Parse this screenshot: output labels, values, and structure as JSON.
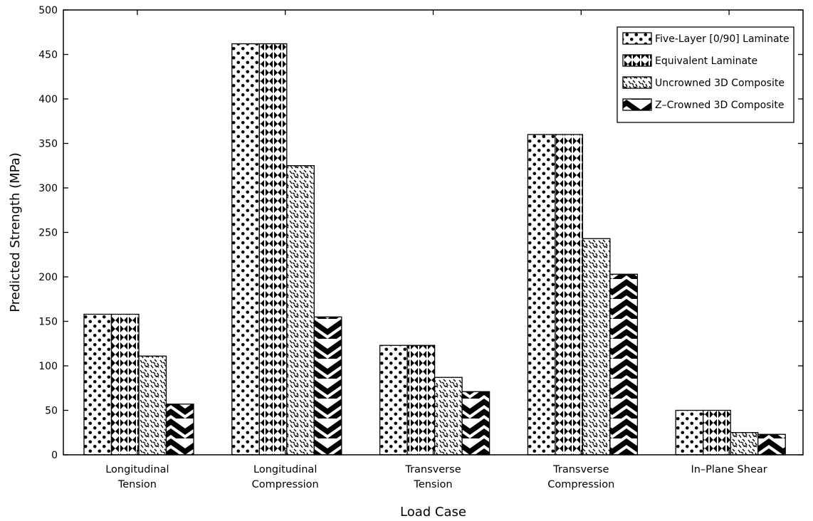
{
  "chart_data": {
    "type": "bar",
    "xlabel": "Load Case",
    "ylabel": "Predicted Strength (MPa)",
    "ylim": [
      0,
      500
    ],
    "yticks": [
      0,
      50,
      100,
      150,
      200,
      250,
      300,
      350,
      400,
      450,
      500
    ],
    "grid": false,
    "legend_position": "top-right",
    "categories": [
      [
        "Longitudinal",
        "Tension"
      ],
      [
        "Longitudinal",
        "Compression"
      ],
      [
        "Transverse",
        "Tension"
      ],
      [
        "Transverse",
        "Compression"
      ],
      [
        "In–Plane Shear"
      ]
    ],
    "series": [
      {
        "name": "Five-Layer [0/90] Laminate",
        "pattern": "dots",
        "values": [
          158,
          462,
          123,
          360,
          50
        ]
      },
      {
        "name": "Equivalent Laminate",
        "pattern": "bowtie",
        "values": [
          158,
          462,
          123,
          360,
          50
        ]
      },
      {
        "name": "Uncrowned 3D Composite",
        "pattern": "dashes",
        "values": [
          111,
          325,
          87,
          243,
          25
        ]
      },
      {
        "name": "Z–Crowned 3D Composite",
        "pattern": "chevron",
        "values": [
          57,
          155,
          71,
          203,
          23
        ]
      }
    ]
  }
}
